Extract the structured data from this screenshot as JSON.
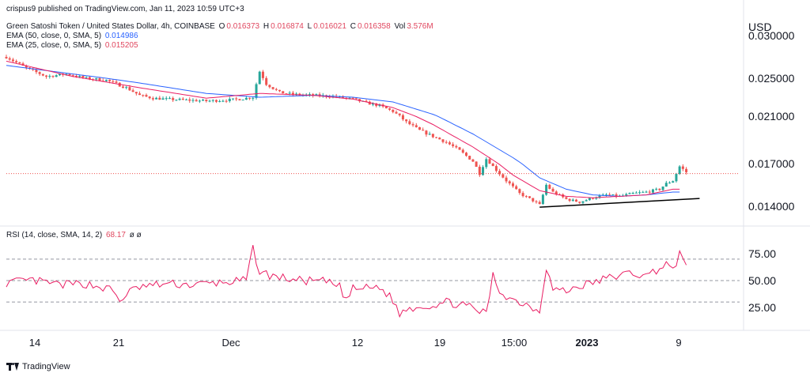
{
  "header": {
    "published": "crispus9 published on TradingView.com, Jan 11, 2023 10:59 UTC+3",
    "symbol": "Green Satoshi Token / United States Dollar, 4h, COINBASE",
    "ohlc": {
      "o_label": "O",
      "o": "0.016373",
      "h_label": "H",
      "h": "0.016874",
      "l_label": "L",
      "l": "0.016021",
      "c_label": "C",
      "c": "0.016358",
      "vol_label": "Vol",
      "vol": "3.576M"
    },
    "ema50": {
      "label": "EMA (50, close, 0, SMA, 5)",
      "value": "0.014986"
    },
    "ema25": {
      "label": "EMA (25, close, 0, SMA, 5)",
      "value": "0.015205"
    },
    "rsi": {
      "label": "RSI (14, close, SMA, 14, 2)",
      "value": "68.17",
      "extra": "ø ø"
    }
  },
  "currency": "USD",
  "brand": "TradingView",
  "colors": {
    "up": "#26a69a",
    "down": "#ef5350",
    "ema50": "#2962ff",
    "ema25": "#e91e63",
    "rsi": "#e91e63",
    "trendline": "#000000"
  },
  "chart_data": [
    {
      "type": "candlestick",
      "title": "",
      "ylabel": "USD",
      "y_ticks": [
        "0.030000",
        "0.025000",
        "0.021000",
        "0.017000",
        "0.014000"
      ],
      "y_tick_values": [
        0.03,
        0.025,
        0.021,
        0.017,
        0.014
      ],
      "ylim": [
        0.0125,
        0.0305
      ],
      "x_ticks": [
        "14",
        "21",
        "Dec",
        "12",
        "19",
        "15:00",
        "2023",
        "9"
      ],
      "current_price_line": 0.0163,
      "close_path": [
        [
          0,
          0.0275
        ],
        [
          3,
          0.0262
        ],
        [
          6,
          0.0252
        ],
        [
          9,
          0.0255
        ],
        [
          12,
          0.025
        ],
        [
          15,
          0.0248
        ],
        [
          18,
          0.024
        ],
        [
          20,
          0.0232
        ],
        [
          22,
          0.0229
        ],
        [
          24,
          0.0228
        ],
        [
          27,
          0.0227
        ],
        [
          30,
          0.0226
        ],
        [
          33,
          0.0227
        ],
        [
          35,
          0.0228
        ],
        [
          37,
          0.023
        ],
        [
          38,
          0.0258
        ],
        [
          39,
          0.0244
        ],
        [
          41,
          0.0235
        ],
        [
          43,
          0.0233
        ],
        [
          46,
          0.0232
        ],
        [
          49,
          0.0231
        ],
        [
          52,
          0.0228
        ],
        [
          54,
          0.0224
        ],
        [
          56,
          0.0221
        ],
        [
          58,
          0.0215
        ],
        [
          60,
          0.0205
        ],
        [
          62,
          0.0198
        ],
        [
          64,
          0.0193
        ],
        [
          66,
          0.0188
        ],
        [
          68,
          0.0181
        ],
        [
          70,
          0.0172
        ],
        [
          71,
          0.0163
        ],
        [
          72,
          0.0174
        ],
        [
          73,
          0.0168
        ],
        [
          75,
          0.0158
        ],
        [
          77,
          0.0149
        ],
        [
          79,
          0.0144
        ],
        [
          80,
          0.0141
        ],
        [
          81,
          0.0155
        ],
        [
          82,
          0.015
        ],
        [
          84,
          0.0145
        ],
        [
          86,
          0.0143
        ],
        [
          88,
          0.0146
        ],
        [
          90,
          0.0148
        ],
        [
          92,
          0.0147
        ],
        [
          94,
          0.0149
        ],
        [
          96,
          0.015
        ],
        [
          98,
          0.0152
        ],
        [
          99,
          0.0156
        ],
        [
          100,
          0.0158
        ],
        [
          101,
          0.0168
        ],
        [
          102,
          0.0164
        ]
      ],
      "ema50_path": [
        [
          0,
          0.0265
        ],
        [
          10,
          0.0255
        ],
        [
          20,
          0.0245
        ],
        [
          30,
          0.0234
        ],
        [
          38,
          0.023
        ],
        [
          46,
          0.0232
        ],
        [
          52,
          0.023
        ],
        [
          58,
          0.0225
        ],
        [
          64,
          0.0212
        ],
        [
          70,
          0.0195
        ],
        [
          76,
          0.0175
        ],
        [
          80,
          0.016
        ],
        [
          84,
          0.0152
        ],
        [
          88,
          0.0148
        ],
        [
          92,
          0.0147
        ],
        [
          96,
          0.0148
        ],
        [
          100,
          0.015
        ],
        [
          101,
          0.015
        ]
      ],
      "ema25_path": [
        [
          0,
          0.027
        ],
        [
          10,
          0.0252
        ],
        [
          20,
          0.024
        ],
        [
          30,
          0.0229
        ],
        [
          38,
          0.0234
        ],
        [
          46,
          0.0232
        ],
        [
          52,
          0.0228
        ],
        [
          58,
          0.0219
        ],
        [
          64,
          0.0203
        ],
        [
          70,
          0.0184
        ],
        [
          76,
          0.0162
        ],
        [
          80,
          0.0151
        ],
        [
          84,
          0.0147
        ],
        [
          88,
          0.0146
        ],
        [
          92,
          0.0147
        ],
        [
          96,
          0.0148
        ],
        [
          100,
          0.0152
        ],
        [
          101,
          0.0152
        ]
      ],
      "trendline": [
        [
          80,
          0.01394
        ],
        [
          104,
          0.01455
        ]
      ]
    },
    {
      "type": "line",
      "title": "",
      "y_ticks": [
        "75.00",
        "50.00",
        "25.00"
      ],
      "y_tick_values": [
        75,
        50,
        25
      ],
      "ylim": [
        8,
        92
      ],
      "bands": [
        70,
        50,
        30
      ],
      "rsi_path": [
        [
          0,
          48
        ],
        [
          4,
          50
        ],
        [
          8,
          46
        ],
        [
          12,
          47
        ],
        [
          16,
          41
        ],
        [
          17,
          30
        ],
        [
          18,
          38
        ],
        [
          20,
          44
        ],
        [
          24,
          47
        ],
        [
          28,
          46
        ],
        [
          32,
          48
        ],
        [
          36,
          50
        ],
        [
          37,
          80
        ],
        [
          38,
          58
        ],
        [
          40,
          54
        ],
        [
          44,
          50
        ],
        [
          48,
          49
        ],
        [
          50,
          44
        ],
        [
          51,
          32
        ],
        [
          52,
          42
        ],
        [
          56,
          44
        ],
        [
          58,
          32
        ],
        [
          59,
          18
        ],
        [
          60,
          24
        ],
        [
          62,
          26
        ],
        [
          64,
          27
        ],
        [
          66,
          30
        ],
        [
          68,
          28
        ],
        [
          70,
          24
        ],
        [
          72,
          19
        ],
        [
          73,
          55
        ],
        [
          74,
          40
        ],
        [
          76,
          32
        ],
        [
          78,
          28
        ],
        [
          80,
          22
        ],
        [
          81,
          63
        ],
        [
          82,
          42
        ],
        [
          84,
          40
        ],
        [
          86,
          45
        ],
        [
          88,
          48
        ],
        [
          90,
          52
        ],
        [
          92,
          55
        ],
        [
          94,
          57
        ],
        [
          96,
          54
        ],
        [
          98,
          62
        ],
        [
          99,
          66
        ],
        [
          100,
          58
        ],
        [
          101,
          75
        ],
        [
          102,
          68
        ]
      ]
    }
  ]
}
